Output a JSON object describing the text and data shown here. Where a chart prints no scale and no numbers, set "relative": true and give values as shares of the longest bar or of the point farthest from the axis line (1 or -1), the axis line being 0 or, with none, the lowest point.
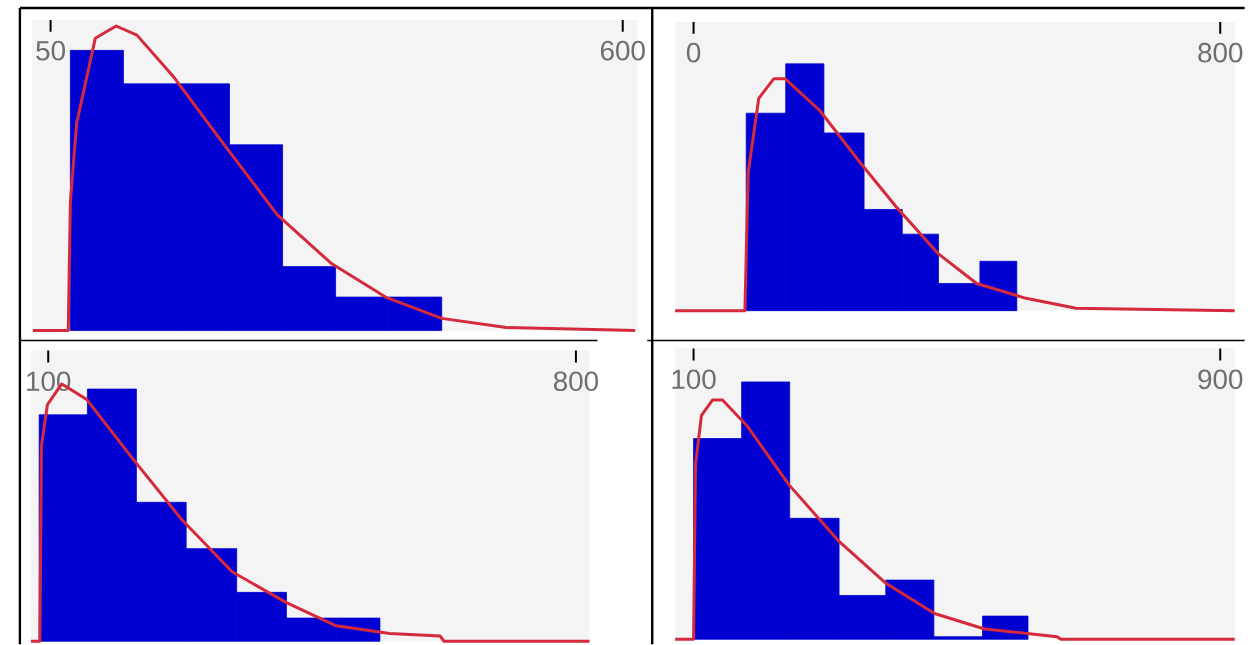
{
  "chart_data": [
    {
      "type": "histogram",
      "relative": true,
      "tick_labels": "x",
      "xlim": [
        32,
        614
      ],
      "xticks": [
        50,
        600
      ],
      "series": [
        {
          "type": "histogram",
          "color": "#0000d0",
          "bins": [
            69,
            120,
            171,
            222,
            273,
            324,
            375,
            426
          ],
          "values": [
            0.92,
            0.81,
            0.81,
            0.61,
            0.21,
            0.11,
            0.11
          ]
        },
        {
          "type": "line",
          "color": "#d42a3c",
          "x": [
            33,
            67,
            69,
            75,
            93,
            113,
            133,
            169,
            217,
            268,
            320,
            372,
            426,
            488,
            612
          ],
          "values": [
            0,
            0,
            0.42,
            0.68,
            0.96,
            1.0,
            0.97,
            0.83,
            0.61,
            0.38,
            0.22,
            0.11,
            0.04,
            0.01,
            0
          ]
        }
      ]
    },
    {
      "type": "histogram",
      "relative": true,
      "tick_labels": "x",
      "xlim": [
        -28,
        822
      ],
      "xticks": [
        0,
        800
      ],
      "series": [
        {
          "type": "histogram",
          "color": "#0000d0",
          "bins": [
            80,
            140,
            198,
            259,
            317,
            372,
            435,
            491
          ],
          "values": [
            0.8,
            1.0,
            0.72,
            0.41,
            0.31,
            0.11,
            0.2
          ]
        },
        {
          "type": "line",
          "color": "#d42a3c",
          "x": [
            -28,
            78,
            83,
            99,
            122,
            139,
            192,
            256,
            308,
            372,
            430,
            505,
            581,
            822
          ],
          "values": [
            0,
            0,
            0.56,
            0.86,
            0.94,
            0.94,
            0.81,
            0.59,
            0.42,
            0.23,
            0.11,
            0.05,
            0.01,
            0
          ]
        }
      ]
    },
    {
      "type": "histogram",
      "relative": true,
      "tick_labels": "x",
      "xlim": [
        77,
        818
      ],
      "xticks": [
        100,
        800
      ],
      "series": [
        {
          "type": "histogram",
          "color": "#0000d0",
          "bins": [
            88,
            152,
            217,
            283,
            350,
            416,
            482,
            540
          ],
          "values": [
            0.88,
            0.98,
            0.54,
            0.36,
            0.19,
            0.09,
            0.09
          ]
        },
        {
          "type": "line",
          "color": "#d42a3c",
          "x": [
            77,
            89,
            91,
            99,
            118,
            151,
            212,
            278,
            344,
            416,
            482,
            553,
            620,
            625,
            818
          ],
          "values": [
            0,
            0,
            0.76,
            0.92,
            1.0,
            0.94,
            0.71,
            0.47,
            0.27,
            0.15,
            0.06,
            0.03,
            0.02,
            0,
            0
          ]
        }
      ]
    },
    {
      "type": "histogram",
      "relative": true,
      "tick_labels": "x",
      "xlim": [
        72,
        922
      ],
      "xticks": [
        100,
        900
      ],
      "series": [
        {
          "type": "histogram",
          "color": "#0000d0",
          "bins": [
            100,
            173,
            246,
            321,
            392,
            465,
            539,
            608
          ],
          "values": [
            0.78,
            1.0,
            0.47,
            0.17,
            0.23,
            0.01,
            0.09
          ]
        },
        {
          "type": "line",
          "color": "#d42a3c",
          "x": [
            72,
            100,
            103,
            112,
            129,
            144,
            181,
            245,
            321,
            391,
            466,
            542,
            652,
            658,
            922
          ],
          "values": [
            0,
            0,
            0.68,
            0.87,
            0.93,
            0.93,
            0.83,
            0.6,
            0.38,
            0.22,
            0.1,
            0.04,
            0.01,
            0,
            0
          ]
        }
      ]
    }
  ]
}
